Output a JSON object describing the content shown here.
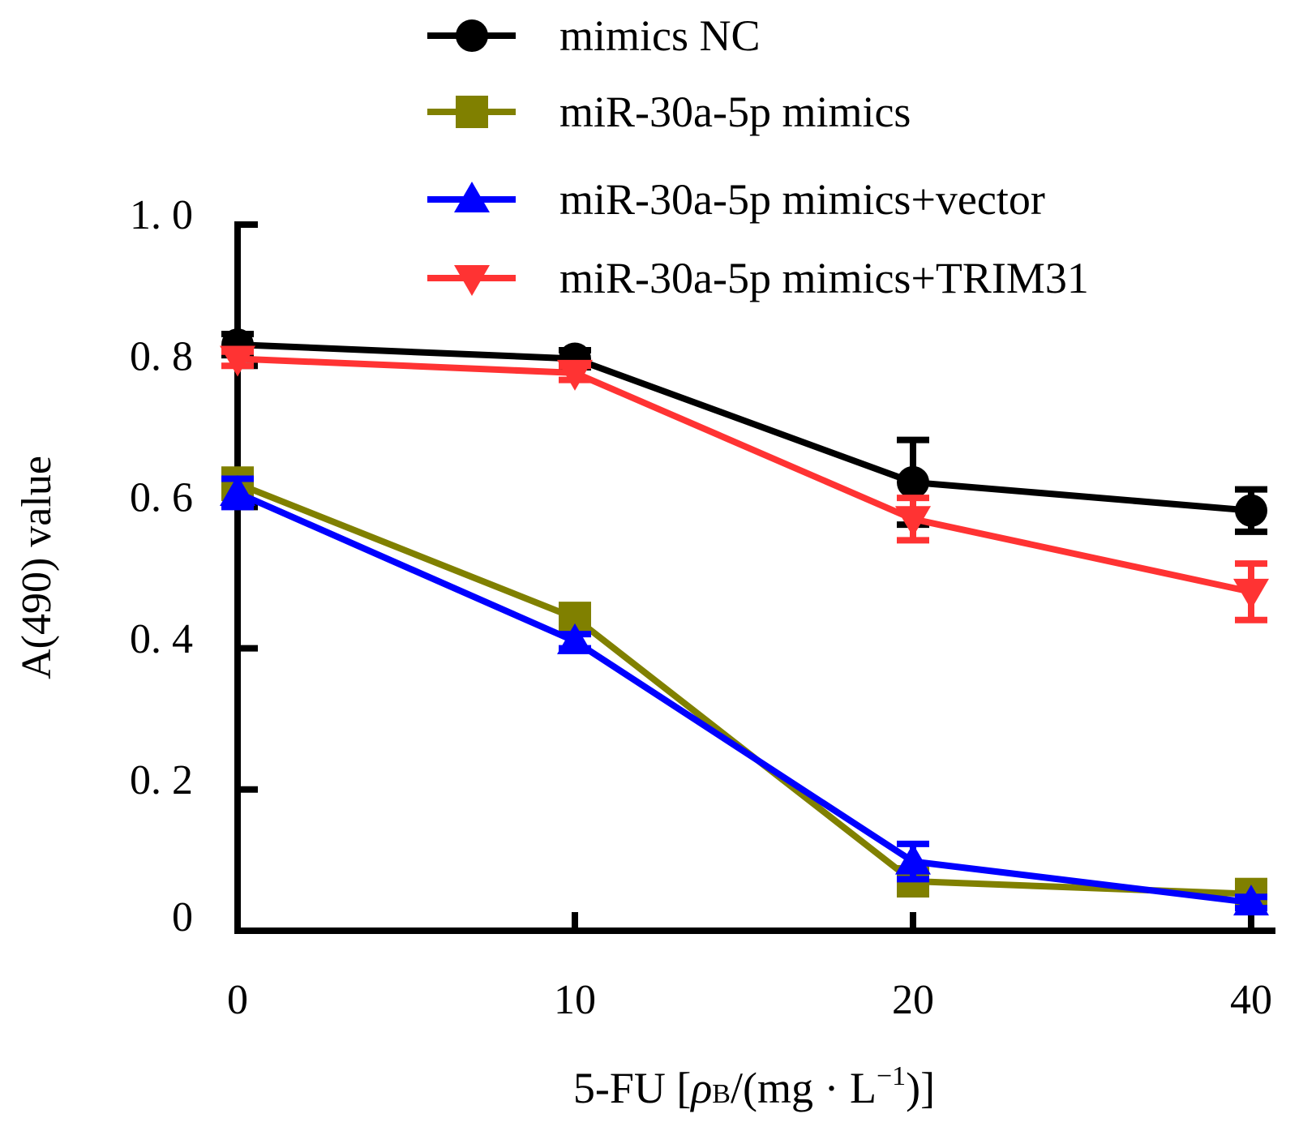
{
  "chart_data": {
    "type": "line",
    "title": "",
    "xlabel": "5-FU [ρB/(mg · L⁻¹)]",
    "xlabel_parts": {
      "prefix": "5-FU [",
      "rho": "ρ",
      "sub": "B",
      "mid": "/(mg · L",
      "sup": "−1",
      "suffix": ")]"
    },
    "ylabel": "A(490) value",
    "categories": [
      "0",
      "10",
      "20",
      "40"
    ],
    "yticks": [
      {
        "value": 0,
        "label": "0"
      },
      {
        "value": 0.2,
        "label": "0. 2"
      },
      {
        "value": 0.4,
        "label": "0. 4"
      },
      {
        "value": 0.6,
        "label": "0. 6"
      },
      {
        "value": 0.8,
        "label": "0. 8"
      },
      {
        "value": 1.0,
        "label": "1. 0"
      }
    ],
    "ylim": [
      0,
      1.0
    ],
    "grid": false,
    "legend_position": "top",
    "series": [
      {
        "name": "mimics NC",
        "color": "#000000",
        "marker": "circle",
        "values": [
          0.83,
          0.81,
          0.635,
          0.595
        ],
        "errors": [
          0.015,
          0.012,
          0.06,
          0.03
        ]
      },
      {
        "name": "miR-30a-5p mimics",
        "color": "#808000",
        "marker": "square",
        "values": [
          0.633,
          0.443,
          0.07,
          0.052
        ],
        "errors": [
          0.02,
          0.01,
          0.01,
          0.008
        ]
      },
      {
        "name": "miR-30a-5p mimics+vector",
        "color": "#0000ff",
        "marker": "triangle-up",
        "values": [
          0.62,
          0.41,
          0.098,
          0.04
        ],
        "errors": [
          0.02,
          0.01,
          0.025,
          0.008
        ]
      },
      {
        "name": "miR-30a-5p mimics+TRIM31",
        "color": "#ff3333",
        "marker": "triangle-down",
        "values": [
          0.81,
          0.79,
          0.583,
          0.48
        ],
        "errors": [
          0.01,
          0.01,
          0.03,
          0.04
        ]
      }
    ]
  }
}
